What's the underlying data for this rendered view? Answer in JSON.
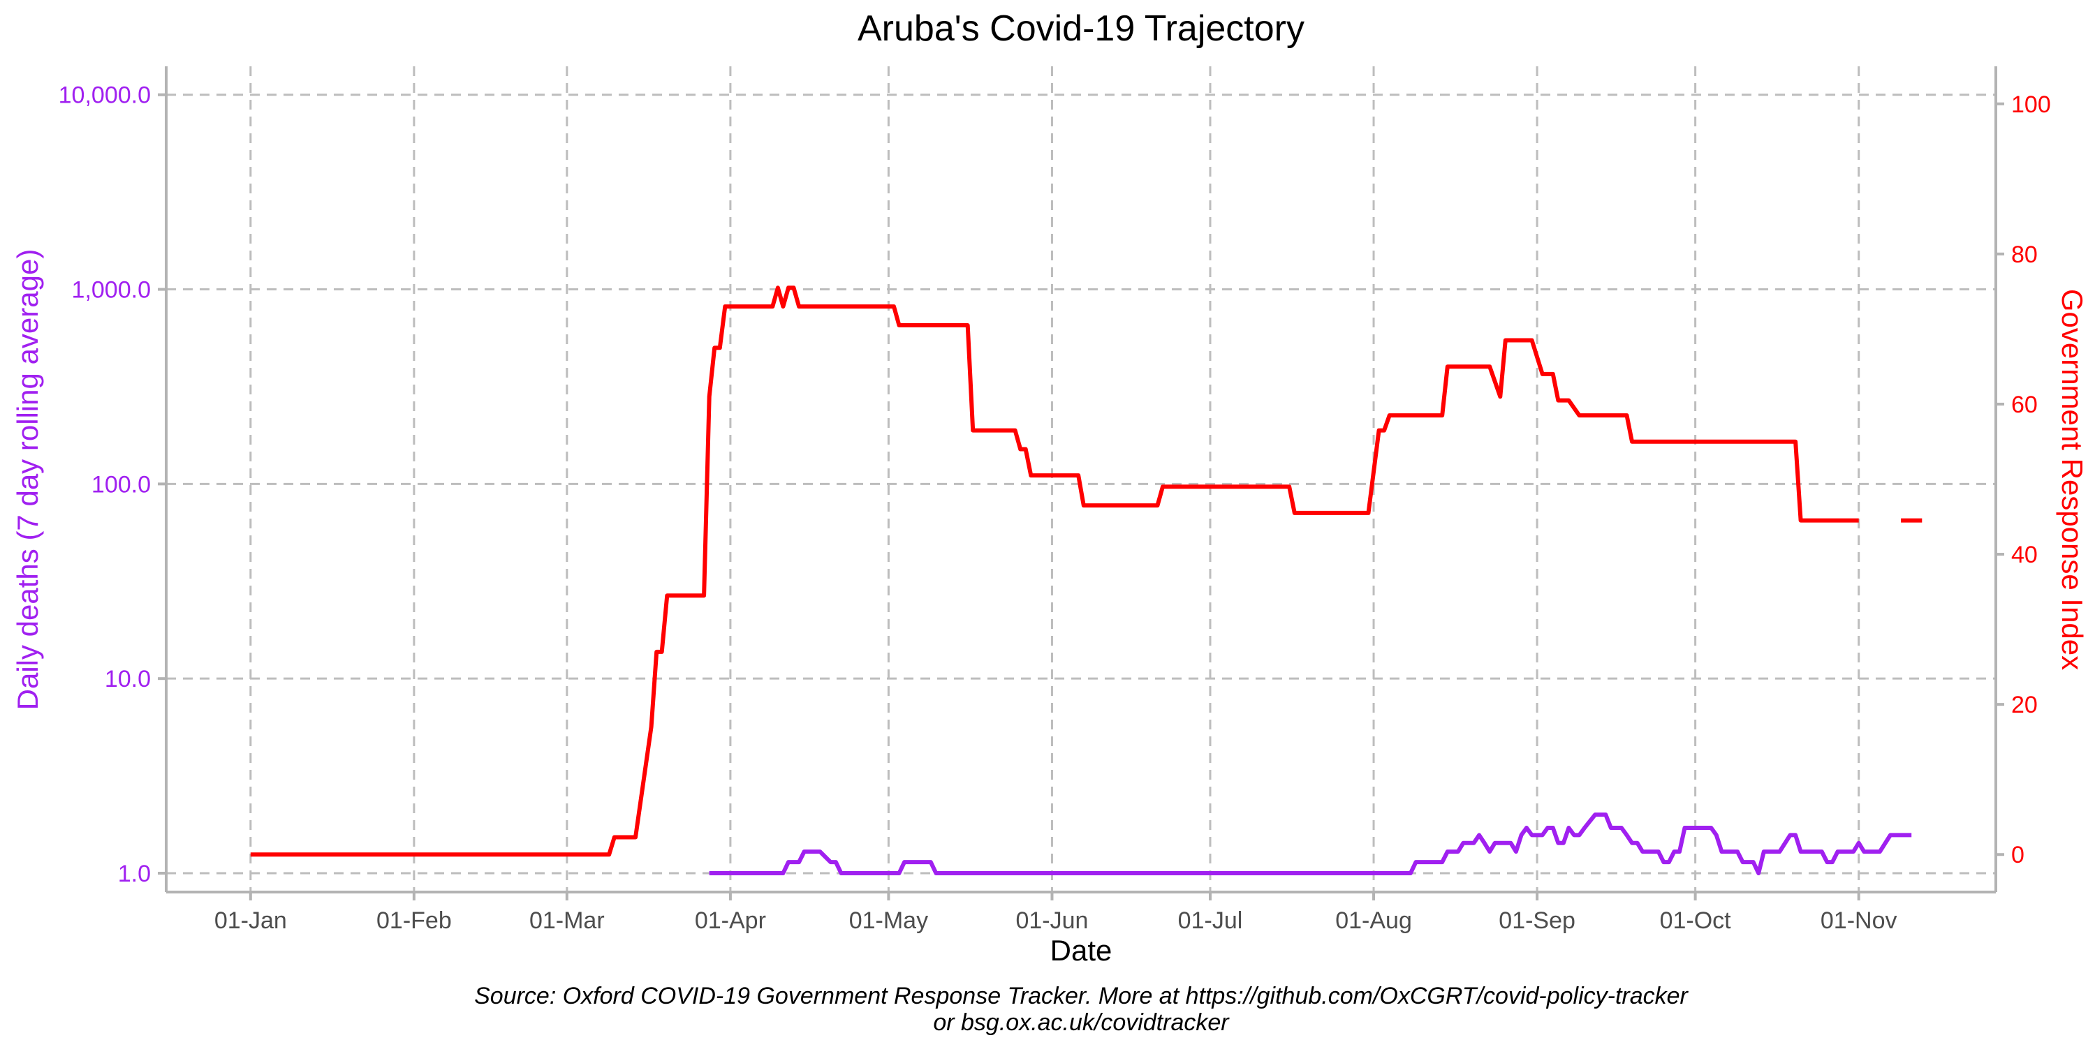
{
  "chart_data": {
    "type": "line",
    "title": "Aruba's Covid-19 Trajectory",
    "xlabel": "Date",
    "ylabel_left": "Daily deaths (7 day rolling average)",
    "ylabel_right": "Government Response Index",
    "caption_line1": "Source: Oxford COVID-19 Government Response Tracker. More at https://github.com/OxCGRT/covid-policy-tracker",
    "caption_line2": "or bsg.ox.ac.uk/covidtracker",
    "x_range": [
      "2019-12-16",
      "2020-11-27"
    ],
    "x_ticks": [
      {
        "date": "2020-01-01",
        "label": "01-Jan"
      },
      {
        "date": "2020-02-01",
        "label": "01-Feb"
      },
      {
        "date": "2020-03-01",
        "label": "01-Mar"
      },
      {
        "date": "2020-04-01",
        "label": "01-Apr"
      },
      {
        "date": "2020-05-01",
        "label": "01-May"
      },
      {
        "date": "2020-06-01",
        "label": "01-Jun"
      },
      {
        "date": "2020-07-01",
        "label": "01-Jul"
      },
      {
        "date": "2020-08-01",
        "label": "01-Aug"
      },
      {
        "date": "2020-09-01",
        "label": "01-Sep"
      },
      {
        "date": "2020-10-01",
        "label": "01-Oct"
      },
      {
        "date": "2020-11-01",
        "label": "01-Nov"
      }
    ],
    "y_left": {
      "scale": "log10",
      "range": [
        0.8,
        14000
      ],
      "ticks": [
        1,
        10,
        100,
        1000,
        10000
      ],
      "tick_labels": [
        "1.0",
        "10.0",
        "100.0",
        "1,000.0",
        "10,000.0"
      ]
    },
    "y_right": {
      "scale": "linear",
      "range": [
        -5,
        105
      ],
      "ticks": [
        0,
        20,
        40,
        60,
        80,
        100
      ],
      "tick_labels": [
        "0",
        "20",
        "40",
        "60",
        "80",
        "100"
      ]
    },
    "grid": true,
    "series": [
      {
        "axis": "right",
        "color": "#ff0000",
        "segments": [
          [
            [
              "2020-01-01",
              0
            ],
            [
              "2020-03-09",
              0
            ],
            [
              "2020-03-10",
              2.3
            ],
            [
              "2020-03-14",
              2.3
            ],
            [
              "2020-03-17",
              17
            ],
            [
              "2020-03-18",
              27
            ],
            [
              "2020-03-19",
              27
            ],
            [
              "2020-03-20",
              34.5
            ],
            [
              "2020-03-27",
              34.5
            ],
            [
              "2020-03-28",
              61
            ],
            [
              "2020-03-29",
              67.5
            ],
            [
              "2020-03-30",
              67.5
            ],
            [
              "2020-03-31",
              73
            ],
            [
              "2020-04-09",
              73
            ],
            [
              "2020-04-10",
              75.5
            ],
            [
              "2020-04-11",
              73
            ],
            [
              "2020-04-12",
              75.5
            ],
            [
              "2020-04-13",
              75.5
            ],
            [
              "2020-04-14",
              73
            ],
            [
              "2020-05-02",
              73
            ],
            [
              "2020-05-03",
              70.5
            ],
            [
              "2020-05-16",
              70.5
            ],
            [
              "2020-05-17",
              56.5
            ],
            [
              "2020-05-25",
              56.5
            ],
            [
              "2020-05-26",
              54
            ],
            [
              "2020-05-27",
              54
            ],
            [
              "2020-05-28",
              50.5
            ],
            [
              "2020-06-06",
              50.5
            ],
            [
              "2020-06-07",
              46.5
            ],
            [
              "2020-06-21",
              46.5
            ],
            [
              "2020-06-22",
              49
            ],
            [
              "2020-07-16",
              49
            ],
            [
              "2020-07-17",
              45.5
            ],
            [
              "2020-07-31",
              45.5
            ],
            [
              "2020-08-02",
              56.5
            ],
            [
              "2020-08-03",
              56.5
            ],
            [
              "2020-08-04",
              58.5
            ],
            [
              "2020-08-14",
              58.5
            ],
            [
              "2020-08-15",
              65
            ],
            [
              "2020-08-23",
              65
            ],
            [
              "2020-08-25",
              61
            ],
            [
              "2020-08-26",
              68.5
            ],
            [
              "2020-08-31",
              68.5
            ],
            [
              "2020-09-02",
              64
            ],
            [
              "2020-09-04",
              64
            ],
            [
              "2020-09-05",
              60.5
            ],
            [
              "2020-09-07",
              60.5
            ],
            [
              "2020-09-09",
              58.5
            ],
            [
              "2020-09-18",
              58.5
            ],
            [
              "2020-09-19",
              55
            ],
            [
              "2020-10-20",
              55
            ],
            [
              "2020-10-21",
              44.5
            ],
            [
              "2020-11-01",
              44.5
            ]
          ],
          [
            [
              "2020-11-09",
              44.5
            ],
            [
              "2020-11-13",
              44.5
            ]
          ]
        ]
      },
      {
        "axis": "left",
        "color": "#a020f0",
        "segments": [
          [
            [
              "2020-03-28",
              1
            ],
            [
              "2020-04-11",
              1
            ],
            [
              "2020-04-12",
              1.14
            ],
            [
              "2020-04-14",
              1.14
            ],
            [
              "2020-04-15",
              1.29
            ],
            [
              "2020-04-18",
              1.29
            ],
            [
              "2020-04-20",
              1.14
            ],
            [
              "2020-04-21",
              1.14
            ],
            [
              "2020-04-22",
              1
            ],
            [
              "2020-05-03",
              1
            ],
            [
              "2020-05-04",
              1.14
            ],
            [
              "2020-05-09",
              1.14
            ],
            [
              "2020-05-10",
              1
            ],
            [
              "2020-08-08",
              1
            ],
            [
              "2020-08-09",
              1.14
            ],
            [
              "2020-08-14",
              1.14
            ],
            [
              "2020-08-15",
              1.29
            ],
            [
              "2020-08-17",
              1.29
            ],
            [
              "2020-08-18",
              1.43
            ],
            [
              "2020-08-20",
              1.43
            ],
            [
              "2020-08-21",
              1.57
            ],
            [
              "2020-08-22",
              1.43
            ],
            [
              "2020-08-23",
              1.29
            ],
            [
              "2020-08-24",
              1.43
            ],
            [
              "2020-08-27",
              1.43
            ],
            [
              "2020-08-28",
              1.29
            ],
            [
              "2020-08-29",
              1.57
            ],
            [
              "2020-08-30",
              1.71
            ],
            [
              "2020-08-31",
              1.57
            ],
            [
              "2020-09-02",
              1.57
            ],
            [
              "2020-09-03",
              1.71
            ],
            [
              "2020-09-04",
              1.71
            ],
            [
              "2020-09-05",
              1.43
            ],
            [
              "2020-09-06",
              1.43
            ],
            [
              "2020-09-07",
              1.71
            ],
            [
              "2020-09-08",
              1.57
            ],
            [
              "2020-09-09",
              1.57
            ],
            [
              "2020-09-10",
              1.71
            ],
            [
              "2020-09-12",
              2
            ],
            [
              "2020-09-14",
              2
            ],
            [
              "2020-09-15",
              1.71
            ],
            [
              "2020-09-17",
              1.71
            ],
            [
              "2020-09-18",
              1.57
            ],
            [
              "2020-09-19",
              1.43
            ],
            [
              "2020-09-20",
              1.43
            ],
            [
              "2020-09-21",
              1.29
            ],
            [
              "2020-09-24",
              1.29
            ],
            [
              "2020-09-25",
              1.14
            ],
            [
              "2020-09-26",
              1.14
            ],
            [
              "2020-09-27",
              1.29
            ],
            [
              "2020-09-28",
              1.29
            ],
            [
              "2020-09-29",
              1.71
            ],
            [
              "2020-10-04",
              1.71
            ],
            [
              "2020-10-05",
              1.57
            ],
            [
              "2020-10-06",
              1.29
            ],
            [
              "2020-10-09",
              1.29
            ],
            [
              "2020-10-10",
              1.14
            ],
            [
              "2020-10-12",
              1.14
            ],
            [
              "2020-10-13",
              1
            ],
            [
              "2020-10-14",
              1.29
            ],
            [
              "2020-10-17",
              1.29
            ],
            [
              "2020-10-19",
              1.57
            ],
            [
              "2020-10-20",
              1.57
            ],
            [
              "2020-10-21",
              1.29
            ],
            [
              "2020-10-25",
              1.29
            ],
            [
              "2020-10-26",
              1.14
            ],
            [
              "2020-10-27",
              1.14
            ],
            [
              "2020-10-28",
              1.29
            ],
            [
              "2020-10-31",
              1.29
            ],
            [
              "2020-11-01",
              1.43
            ],
            [
              "2020-11-02",
              1.29
            ],
            [
              "2020-11-05",
              1.29
            ],
            [
              "2020-11-07",
              1.57
            ],
            [
              "2020-11-11",
              1.57
            ]
          ]
        ]
      }
    ],
    "colors": {
      "deaths_axis": "#a020f0",
      "response_axis": "#ff0000",
      "grid": "#bdbdbd",
      "axis_line": "#b3b3b3"
    }
  }
}
